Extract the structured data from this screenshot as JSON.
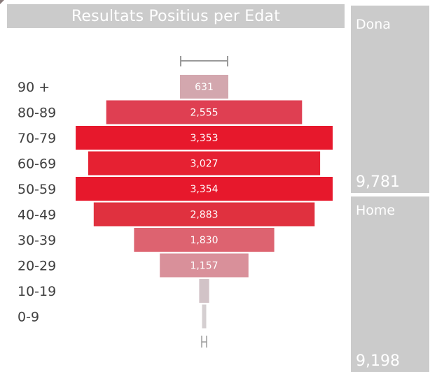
{
  "title": "Resultats Positius per Edat",
  "chart_data": {
    "type": "bar",
    "orientation": "horizontal-centered",
    "categories": [
      "90 +",
      "80-89",
      "70-79",
      "60-69",
      "50-59",
      "40-49",
      "30-39",
      "20-29",
      "10-19",
      "0-9"
    ],
    "values": [
      631,
      2555,
      3353,
      3027,
      3354,
      2883,
      1830,
      1157,
      130,
      50
    ],
    "value_labels": [
      "631",
      "2,555",
      "3,353",
      "3,027",
      "3,354",
      "2,883",
      "1,830",
      "1,157",
      "",
      ""
    ],
    "colors": [
      "#d3a7ae",
      "#df3f52",
      "#e7182c",
      "#e62132",
      "#e7182c",
      "#e0313f",
      "#dd6370",
      "#d9909a",
      "#d2c3c7",
      "#d5cfd1"
    ],
    "error_bar_color": "#9a9a9a",
    "xlim": [
      0,
      3354
    ]
  },
  "cards": [
    {
      "label": "Dona",
      "value": "9,781"
    },
    {
      "label": "Home",
      "value": "9,198"
    }
  ]
}
